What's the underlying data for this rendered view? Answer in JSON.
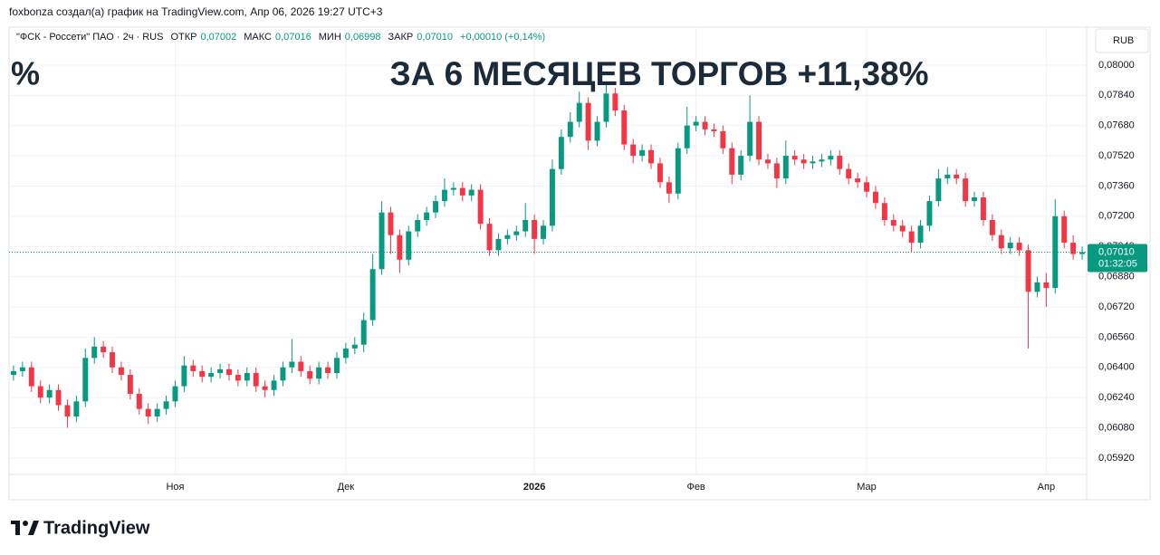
{
  "header": {
    "text": "foxbonza создал(а) график на TradingView.com, Апр 06, 2026 19:27 UTC+3"
  },
  "legend": {
    "symbol": "\"ФСК - Россети\" ПАО · 2ч · RUS",
    "open_label": "ОТКР",
    "open": "0,07002",
    "high_label": "МАКС",
    "high": "0,07016",
    "low_label": "МИН",
    "low": "0,06998",
    "close_label": "ЗАКР",
    "close": "0,07010",
    "change": "+0,00010 (+0,14%)"
  },
  "overlay": {
    "title": "ЗА 6 МЕСЯЦЕВ ТОРГОВ +11,38%",
    "left_mark": "%"
  },
  "currency": "RUB",
  "logo": "TradingView",
  "chart_data": {
    "type": "candlestick",
    "up_color": "#089981",
    "down_color": "#f23645",
    "grid": true,
    "last_price": {
      "value": 0.0701,
      "label": "0,07010"
    },
    "countdown": "01:32:05",
    "xlim": [
      -0.5,
      119.5
    ],
    "xticks": [
      {
        "value": 18,
        "label": "Ноя"
      },
      {
        "value": 37,
        "label": "Дек"
      },
      {
        "value": 58,
        "label": "2026"
      },
      {
        "value": 76,
        "label": "Фев"
      },
      {
        "value": 95,
        "label": "Мар"
      },
      {
        "value": 115,
        "label": "Апр"
      }
    ],
    "ylim": [
      0.05699,
      0.08201
    ],
    "yticks": [
      {
        "value": 0.08,
        "label": "0,08000"
      },
      {
        "value": 0.0784,
        "label": "0,07840"
      },
      {
        "value": 0.0768,
        "label": "0,07680"
      },
      {
        "value": 0.0752,
        "label": "0,07520"
      },
      {
        "value": 0.0736,
        "label": "0,07360"
      },
      {
        "value": 0.072,
        "label": "0,07200"
      },
      {
        "value": 0.0704,
        "label": "0,07040"
      },
      {
        "value": 0.0688,
        "label": "0,06880"
      },
      {
        "value": 0.0672,
        "label": "0,06720"
      },
      {
        "value": 0.0656,
        "label": "0,06560"
      },
      {
        "value": 0.064,
        "label": "0,06400"
      },
      {
        "value": 0.0624,
        "label": "0,06240"
      },
      {
        "value": 0.0608,
        "label": "0,06080"
      },
      {
        "value": 0.0592,
        "label": "0,05920"
      }
    ],
    "open": [
      0.0636,
      0.0638,
      0.064,
      0.063,
      0.0624,
      0.0628,
      0.062,
      0.0614,
      0.0622,
      0.0645,
      0.0651,
      0.0648,
      0.064,
      0.0636,
      0.0626,
      0.0618,
      0.0614,
      0.0618,
      0.0622,
      0.063,
      0.0641,
      0.0638,
      0.0635,
      0.0637,
      0.0639,
      0.0636,
      0.0633,
      0.0637,
      0.063,
      0.0628,
      0.0633,
      0.064,
      0.0643,
      0.0638,
      0.0634,
      0.064,
      0.0637,
      0.0645,
      0.065,
      0.0652,
      0.0665,
      0.0692,
      0.0722,
      0.071,
      0.0697,
      0.0712,
      0.0718,
      0.0722,
      0.0728,
      0.0734,
      0.0735,
      0.0731,
      0.0734,
      0.0716,
      0.0702,
      0.0708,
      0.071,
      0.0712,
      0.0718,
      0.0708,
      0.0715,
      0.0745,
      0.0762,
      0.077,
      0.078,
      0.076,
      0.077,
      0.0785,
      0.0776,
      0.0758,
      0.0752,
      0.0755,
      0.0748,
      0.0738,
      0.0732,
      0.0756,
      0.0768,
      0.077,
      0.0766,
      0.0765,
      0.0756,
      0.0742,
      0.0752,
      0.077,
      0.075,
      0.0748,
      0.074,
      0.0752,
      0.075,
      0.0748,
      0.0749,
      0.075,
      0.0752,
      0.0745,
      0.074,
      0.0738,
      0.0733,
      0.0727,
      0.0718,
      0.0715,
      0.0712,
      0.0706,
      0.0715,
      0.0728,
      0.074,
      0.0742,
      0.074,
      0.0728,
      0.073,
      0.0718,
      0.071,
      0.0703,
      0.0706,
      0.0702,
      0.068,
      0.0685,
      0.0682,
      0.072,
      0.0706,
      0.07
    ],
    "high": [
      0.0641,
      0.0643,
      0.0643,
      0.0633,
      0.0631,
      0.0631,
      0.0623,
      0.0625,
      0.065,
      0.0656,
      0.0654,
      0.0651,
      0.0643,
      0.0639,
      0.0629,
      0.0621,
      0.0621,
      0.0625,
      0.0633,
      0.0646,
      0.0644,
      0.0641,
      0.064,
      0.0642,
      0.0642,
      0.0639,
      0.064,
      0.064,
      0.0633,
      0.0636,
      0.0643,
      0.0655,
      0.0646,
      0.0641,
      0.0643,
      0.0643,
      0.0648,
      0.0653,
      0.0656,
      0.0669,
      0.07,
      0.0728,
      0.0725,
      0.0713,
      0.0715,
      0.0721,
      0.0725,
      0.0731,
      0.074,
      0.0738,
      0.0738,
      0.0737,
      0.0737,
      0.0719,
      0.0711,
      0.0713,
      0.0715,
      0.0727,
      0.0721,
      0.0718,
      0.075,
      0.0766,
      0.0775,
      0.0786,
      0.0783,
      0.0773,
      0.079,
      0.0788,
      0.0779,
      0.0761,
      0.0758,
      0.0758,
      0.0751,
      0.0741,
      0.0759,
      0.0778,
      0.0773,
      0.0773,
      0.0769,
      0.0768,
      0.0759,
      0.0755,
      0.0784,
      0.0773,
      0.0753,
      0.0751,
      0.076,
      0.0755,
      0.0753,
      0.0752,
      0.0753,
      0.0755,
      0.0755,
      0.0748,
      0.0743,
      0.0741,
      0.0736,
      0.073,
      0.0721,
      0.0718,
      0.0715,
      0.0718,
      0.0731,
      0.0745,
      0.0746,
      0.0745,
      0.0743,
      0.0733,
      0.0733,
      0.0721,
      0.0713,
      0.0709,
      0.0709,
      0.0705,
      0.0688,
      0.069,
      0.0729,
      0.0723,
      0.071,
      0.0704
    ],
    "low": [
      0.0633,
      0.0635,
      0.0627,
      0.0621,
      0.0621,
      0.0617,
      0.0608,
      0.0611,
      0.0619,
      0.0642,
      0.0645,
      0.0637,
      0.0633,
      0.0623,
      0.0615,
      0.061,
      0.0611,
      0.0615,
      0.0619,
      0.0627,
      0.0635,
      0.0632,
      0.0632,
      0.0634,
      0.0633,
      0.063,
      0.063,
      0.0627,
      0.0624,
      0.0625,
      0.063,
      0.0637,
      0.0635,
      0.0631,
      0.0631,
      0.0634,
      0.0634,
      0.0642,
      0.0647,
      0.0648,
      0.0662,
      0.0689,
      0.07,
      0.069,
      0.0694,
      0.0709,
      0.0715,
      0.0719,
      0.0725,
      0.0731,
      0.0728,
      0.0728,
      0.0713,
      0.0699,
      0.0699,
      0.0705,
      0.0707,
      0.0709,
      0.07,
      0.0705,
      0.0712,
      0.0742,
      0.0759,
      0.0767,
      0.0755,
      0.0757,
      0.0767,
      0.0773,
      0.0755,
      0.0748,
      0.0749,
      0.0745,
      0.0735,
      0.0727,
      0.0729,
      0.0753,
      0.0765,
      0.0763,
      0.0762,
      0.0753,
      0.0737,
      0.0739,
      0.0749,
      0.0747,
      0.0745,
      0.0735,
      0.0737,
      0.0747,
      0.0745,
      0.0745,
      0.0746,
      0.0747,
      0.0742,
      0.0737,
      0.0735,
      0.073,
      0.0724,
      0.0715,
      0.0712,
      0.0709,
      0.0701,
      0.0703,
      0.0712,
      0.0725,
      0.0737,
      0.0737,
      0.0725,
      0.0725,
      0.0715,
      0.0707,
      0.07,
      0.07,
      0.0699,
      0.065,
      0.0677,
      0.0672,
      0.0679,
      0.0703,
      0.0697,
      0.0697
    ],
    "close": [
      0.0638,
      0.064,
      0.063,
      0.0624,
      0.0628,
      0.062,
      0.0614,
      0.0622,
      0.0645,
      0.0651,
      0.0648,
      0.064,
      0.0636,
      0.0626,
      0.0618,
      0.0614,
      0.0618,
      0.0622,
      0.063,
      0.0641,
      0.0638,
      0.0635,
      0.0637,
      0.0639,
      0.0636,
      0.0633,
      0.0637,
      0.063,
      0.0628,
      0.0633,
      0.064,
      0.0643,
      0.0638,
      0.0634,
      0.064,
      0.0637,
      0.0645,
      0.065,
      0.0652,
      0.0665,
      0.0692,
      0.0722,
      0.071,
      0.0697,
      0.0712,
      0.0718,
      0.0722,
      0.0728,
      0.0734,
      0.0735,
      0.0731,
      0.0734,
      0.0716,
      0.0702,
      0.0708,
      0.071,
      0.0712,
      0.0718,
      0.0708,
      0.0715,
      0.0745,
      0.0762,
      0.077,
      0.078,
      0.076,
      0.077,
      0.0785,
      0.0776,
      0.0758,
      0.0752,
      0.0755,
      0.0748,
      0.0738,
      0.0732,
      0.0756,
      0.0768,
      0.077,
      0.0766,
      0.0765,
      0.0756,
      0.0742,
      0.0752,
      0.077,
      0.075,
      0.0748,
      0.074,
      0.0752,
      0.075,
      0.0748,
      0.0749,
      0.075,
      0.0752,
      0.0745,
      0.074,
      0.0738,
      0.0733,
      0.0727,
      0.0718,
      0.0715,
      0.0712,
      0.0706,
      0.0715,
      0.0728,
      0.074,
      0.0742,
      0.074,
      0.0728,
      0.073,
      0.0718,
      0.071,
      0.0703,
      0.0706,
      0.0702,
      0.068,
      0.0685,
      0.0682,
      0.072,
      0.0706,
      0.07,
      0.0701
    ]
  }
}
